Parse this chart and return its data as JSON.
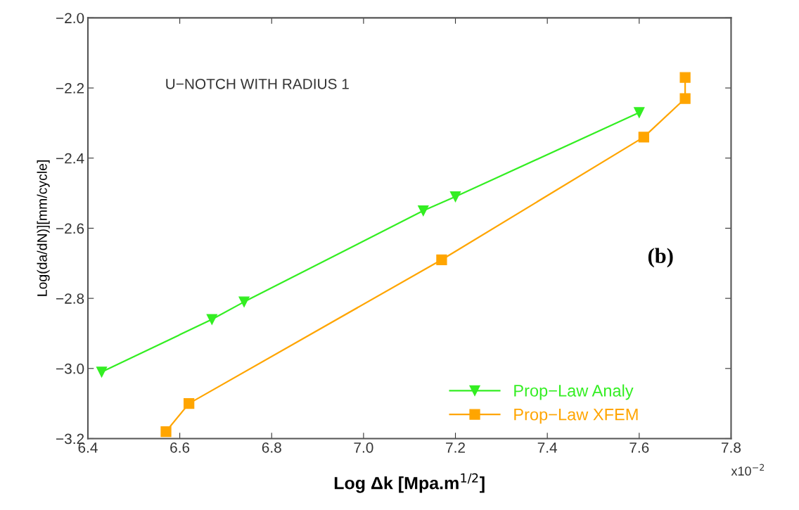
{
  "chart_data": {
    "type": "line",
    "xlabel": "Log Δk [Mpa.m$^{1/2}$]",
    "ylabel": "Log(da/dN)][mm/cycle]",
    "annotations": [
      "U−NOTCH WITH RADIUS 1",
      "(b)",
      "x10$^{−2}$"
    ],
    "xlim": [
      6.4,
      7.8
    ],
    "ylim": [
      -3.2,
      -2.0
    ],
    "xticks": [
      {
        "value": 6.4,
        "label": "6.4"
      },
      {
        "value": 6.6,
        "label": "6.6"
      },
      {
        "value": 6.8,
        "label": "6.8"
      },
      {
        "value": 7.0,
        "label": "7.0"
      },
      {
        "value": 7.2,
        "label": "7.2"
      },
      {
        "value": 7.4,
        "label": "7.4"
      },
      {
        "value": 7.6,
        "label": "7.6"
      },
      {
        "value": 7.8,
        "label": "7.8"
      }
    ],
    "yticks": [
      {
        "value": -3.2,
        "label": "−3.2"
      },
      {
        "value": -3.0,
        "label": "−3.0"
      },
      {
        "value": -2.8,
        "label": "−2.8"
      },
      {
        "value": -2.6,
        "label": "−2.6"
      },
      {
        "value": -2.4,
        "label": "−2.4"
      },
      {
        "value": -2.2,
        "label": "−2.2"
      },
      {
        "value": -2.0,
        "label": "−2.0"
      }
    ],
    "legend": "bottom right",
    "grid": false,
    "series": [
      {
        "name": "Prop−Law Analy",
        "color": "#33ee22",
        "marker": "triangle",
        "x": [
          6.43,
          6.67,
          6.74,
          7.13,
          7.2,
          7.6
        ],
        "values": [
          -3.01,
          -2.86,
          -2.81,
          -2.55,
          -2.51,
          -2.27
        ]
      },
      {
        "name": "Prop−Law XFEM",
        "color": "#ffa500",
        "marker": "square",
        "x": [
          6.57,
          6.62,
          7.17,
          7.61,
          7.7,
          7.7
        ],
        "values": [
          -3.18,
          -3.1,
          -2.69,
          -2.34,
          -2.23,
          -2.17
        ]
      }
    ]
  }
}
